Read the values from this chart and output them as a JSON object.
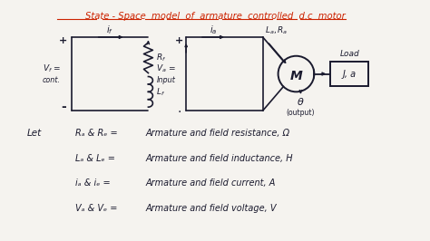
{
  "bg_color": "#f5f3ef",
  "title": "State - Space  model  of  armature  controlled  d.c  motor",
  "title_color": "#cc2200",
  "text_color": "#1a1a2e",
  "circuit_color": "#1a1a2e",
  "legend_lines": [
    [
      "Let",
      "Rₐ & Rₑ =",
      "Armature and field resistance, Ω"
    ],
    [
      "",
      "Lₐ & Lₑ =",
      "Armature and field inductance, H"
    ],
    [
      "",
      "iₐ & iₑ =",
      "Armature and field current, A"
    ],
    [
      "",
      "Vₐ & Vₑ =",
      "Armature and field voltage, V"
    ]
  ]
}
